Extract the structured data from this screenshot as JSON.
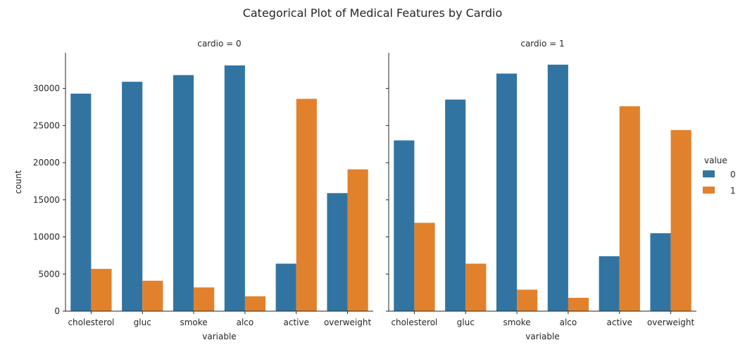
{
  "chart_data": {
    "type": "bar",
    "title": "Categorical Plot of Medical Features by Cardio",
    "xlabel": "variable",
    "ylabel": "count",
    "ylim": [
      0,
      34800
    ],
    "yticks": [
      0,
      5000,
      10000,
      15000,
      20000,
      25000,
      30000
    ],
    "categories": [
      "cholesterol",
      "gluc",
      "smoke",
      "alco",
      "active",
      "overweight"
    ],
    "legend": {
      "title": "value",
      "placement": "right",
      "entries": [
        "0",
        "1"
      ]
    },
    "colors": {
      "0": "#3274a1",
      "1": "#e1812c"
    },
    "panels": [
      {
        "title": "cardio = 0",
        "series": [
          {
            "name": "0",
            "values": [
              29300,
              30900,
              31800,
              33100,
              6400,
              15900
            ]
          },
          {
            "name": "1",
            "values": [
              5700,
              4100,
              3200,
              2000,
              28600,
              19100
            ]
          }
        ]
      },
      {
        "title": "cardio = 1",
        "series": [
          {
            "name": "0",
            "values": [
              23000,
              28500,
              32000,
              33200,
              7400,
              10500
            ]
          },
          {
            "name": "1",
            "values": [
              11900,
              6400,
              2900,
              1800,
              27600,
              24400
            ]
          }
        ]
      }
    ]
  }
}
